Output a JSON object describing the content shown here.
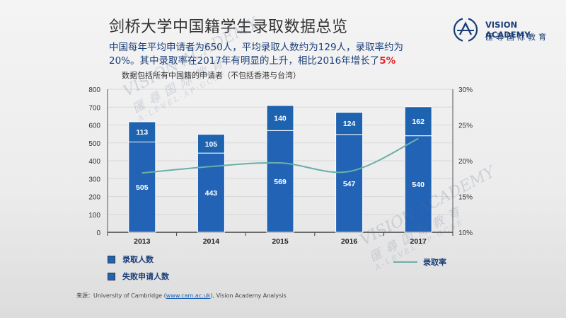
{
  "title": "剑桥大学中国籍学生录取数据总览",
  "summary": {
    "line1": "中国每年平均申请者为650人，平均录取人数约为129人，录取率约为",
    "line2_prefix": "20%。其中录取率在2017年有明显的上升，相比2016年增长了",
    "highlight": "5%"
  },
  "note": "数据包括所有中国籍的申请者（不包括香港与台湾）",
  "logo": {
    "name": "VISION ACADEMY",
    "subtitle": "匯尋国际教育"
  },
  "watermark": {
    "brand": "VISION ACADEMY",
    "subtitle": "匯尋国际教育",
    "tagline": "A-LEVEL·AP·GCSE"
  },
  "source": {
    "prefix": "来源：University of Cambridge (",
    "link": "www.cam.ac.uk",
    "suffix": "), Vision Academy Analysis"
  },
  "colors": {
    "accepted": "#1e63b0",
    "rejected": "#2363b6",
    "rate_line": "#6ab0a6",
    "highlight": "#e3262d"
  },
  "chart_data": {
    "type": "bar",
    "stacked": true,
    "categories": [
      "2013",
      "2014",
      "2015",
      "2016",
      "2017"
    ],
    "series": [
      {
        "name": "失败申请人数",
        "values": [
          505,
          443,
          569,
          547,
          540
        ]
      },
      {
        "name": "录取人数",
        "values": [
          113,
          105,
          140,
          124,
          162
        ]
      },
      {
        "name": "录取率",
        "type": "line",
        "axis": "right",
        "values": [
          18.3,
          19.2,
          19.7,
          18.5,
          23.1
        ]
      }
    ],
    "ylim": [
      0,
      800
    ],
    "yticks": [
      "0",
      "100",
      "200",
      "300",
      "400",
      "500",
      "600",
      "700",
      "800"
    ],
    "y2lim": [
      10,
      30
    ],
    "y2ticks": [
      "10%",
      "15%",
      "20%",
      "25%",
      "30%"
    ],
    "legend": {
      "items": [
        "录取人数",
        "失败申请人数",
        "录取率"
      ],
      "placement": "bottom"
    }
  }
}
